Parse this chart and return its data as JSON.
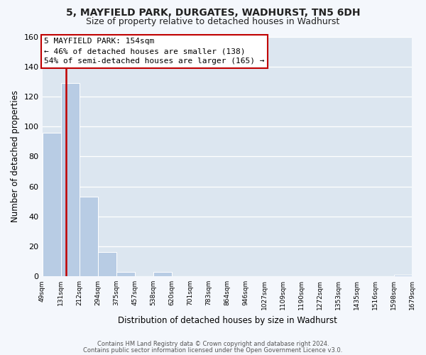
{
  "title": "5, MAYFIELD PARK, DURGATES, WADHURST, TN5 6DH",
  "subtitle": "Size of property relative to detached houses in Wadhurst",
  "xlabel": "Distribution of detached houses by size in Wadhurst",
  "ylabel": "Number of detached properties",
  "bar_edges": [
    49,
    131,
    212,
    294,
    375,
    457,
    538,
    620,
    701,
    783,
    864,
    946,
    1027,
    1109,
    1190,
    1272,
    1353,
    1435,
    1516,
    1598,
    1679
  ],
  "bar_heights": [
    96,
    129,
    53,
    16,
    3,
    0,
    3,
    0,
    0,
    0,
    0,
    0,
    0,
    0,
    0,
    0,
    0,
    0,
    0,
    1
  ],
  "bar_color": "#b8cce4",
  "bar_edge_color": "#c0d0e8",
  "highlight_color": "#c00000",
  "property_label": "5 MAYFIELD PARK: 154sqm",
  "annotation_line1": "← 46% of detached houses are smaller (138)",
  "annotation_line2": "54% of semi-detached houses are larger (165) →",
  "annotation_box_color": "#ffffff",
  "annotation_box_edge": "#c00000",
  "vline_x": 154,
  "vline_color": "#c00000",
  "ylim": [
    0,
    160
  ],
  "yticks": [
    0,
    20,
    40,
    60,
    80,
    100,
    120,
    140,
    160
  ],
  "footer_line1": "Contains HM Land Registry data © Crown copyright and database right 2024.",
  "footer_line2": "Contains public sector information licensed under the Open Government Licence v3.0.",
  "fig_bg_color": "#f4f7fc",
  "plot_bg_color": "#dce6f0"
}
